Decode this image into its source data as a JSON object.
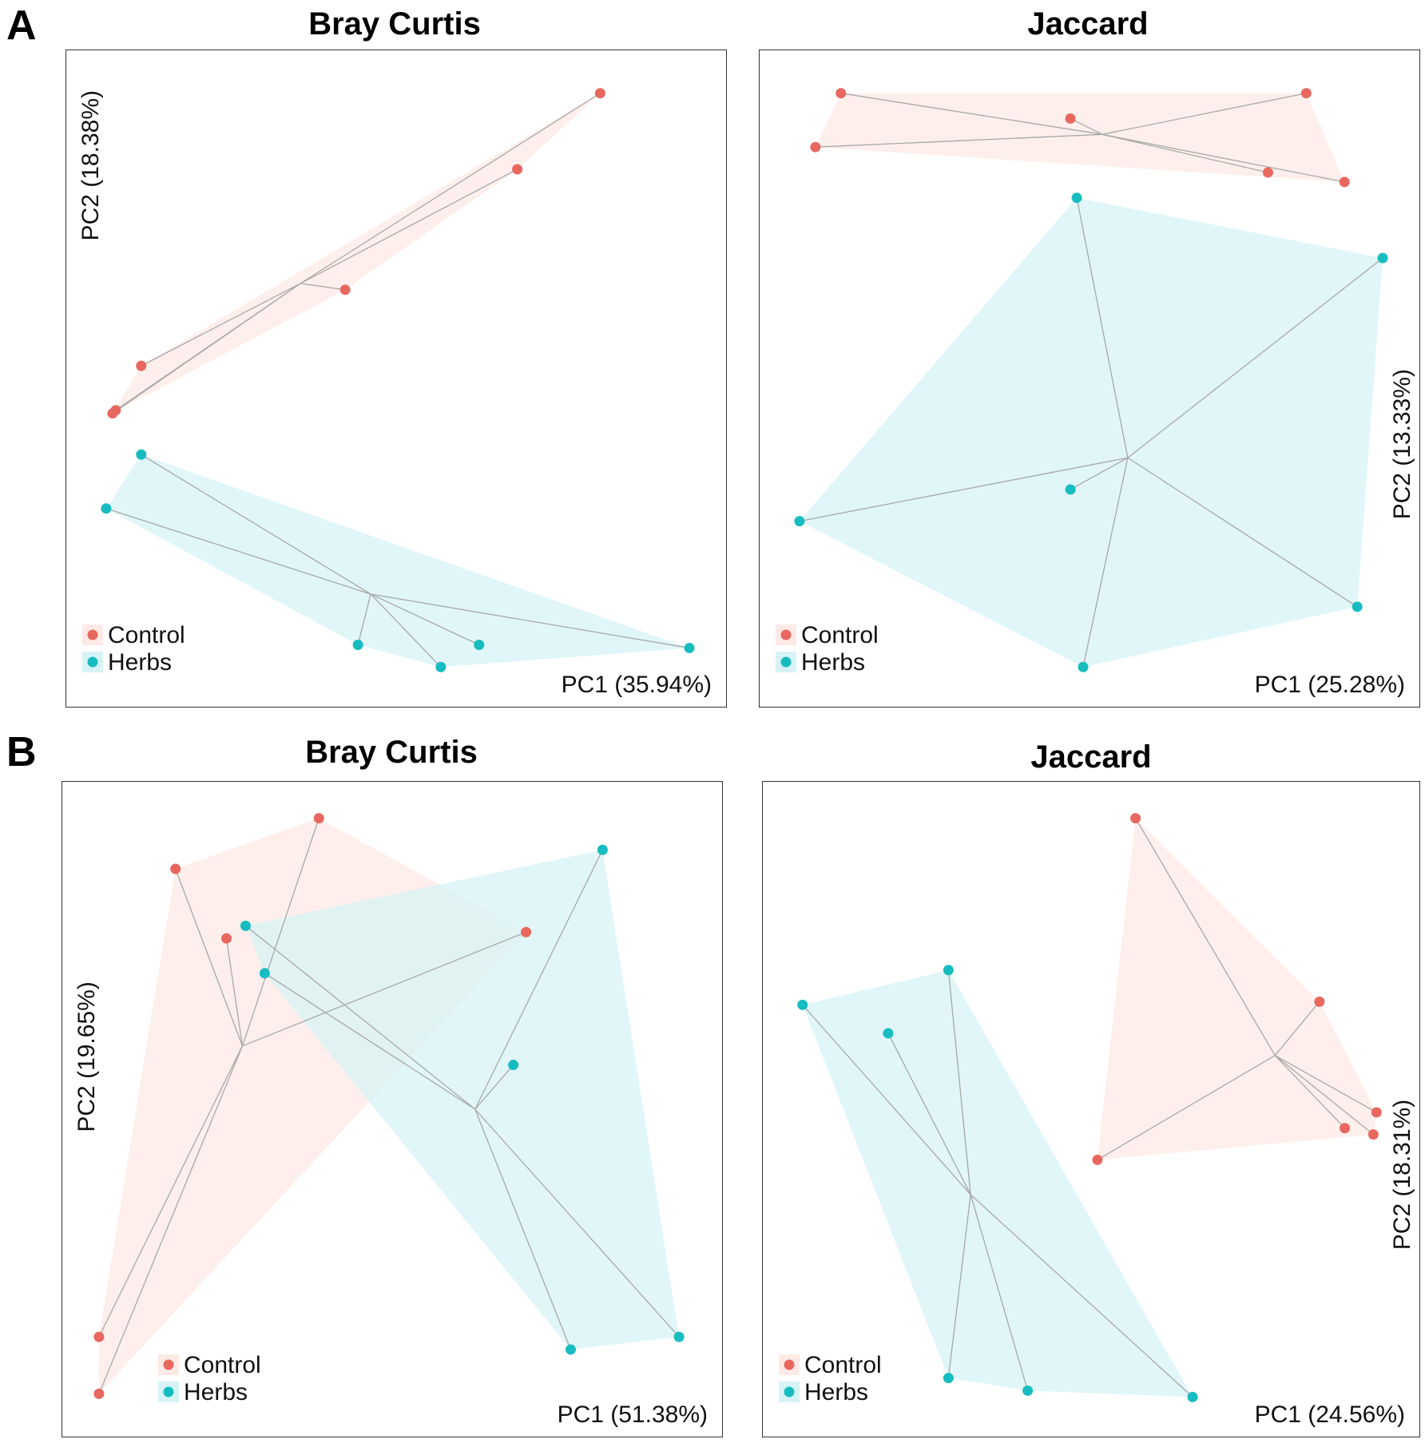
{
  "panels": [
    {
      "letter": "A"
    },
    {
      "letter": "B"
    }
  ],
  "colors": {
    "control_point": "#e8685f",
    "control_fill": "#fde9e6",
    "herbs_point": "#17bcc0",
    "herbs_fill": "#d7f3f5",
    "spider_line": "#a8a8a8"
  },
  "legend": {
    "control_label": "Control",
    "herbs_label": "Herbs"
  },
  "chart_data": [
    {
      "type": "scatter",
      "panel": "A",
      "title": "Bray Curtis",
      "xlabel": "PC1 (35.94%)",
      "ylabel": "PC2 (18.38%)",
      "xlim": [
        0,
        100
      ],
      "ylim": [
        0,
        100
      ],
      "grid": false,
      "ylabel_position": "top-left",
      "legend_position": "bottom-left",
      "series": [
        {
          "name": "Control",
          "centroid": [
            35,
            65
          ],
          "points": [
            [
              82,
              95
            ],
            [
              69,
              83
            ],
            [
              42,
              64
            ],
            [
              10,
              52
            ],
            [
              6,
              45
            ],
            [
              5.5,
              44.5
            ]
          ]
        },
        {
          "name": "Herbs",
          "centroid": [
            46,
            16
          ],
          "points": [
            [
              10,
              38
            ],
            [
              4.5,
              29.5
            ],
            [
              44,
              8
            ],
            [
              57,
              4.5
            ],
            [
              63,
              8
            ],
            [
              96,
              7.5
            ]
          ]
        }
      ]
    },
    {
      "type": "scatter",
      "panel": "A",
      "title": "Jaccard",
      "xlabel": "PC1 (25.28%)",
      "ylabel": "PC2 (13.33%)",
      "xlim": [
        0,
        100
      ],
      "ylim": [
        0,
        100
      ],
      "grid": false,
      "ylabel_position": "right",
      "legend_position": "bottom-left",
      "series": [
        {
          "name": "Control",
          "centroid": [
            52,
            88.5
          ],
          "points": [
            [
              11,
              95
            ],
            [
              7,
              86.5
            ],
            [
              47,
              91
            ],
            [
              84,
              95
            ],
            [
              78,
              82.5
            ],
            [
              90,
              81
            ]
          ]
        },
        {
          "name": "Herbs",
          "centroid": [
            56,
            37.5
          ],
          "points": [
            [
              48,
              78.5
            ],
            [
              96,
              69
            ],
            [
              47,
              32.5
            ],
            [
              4.5,
              27.5
            ],
            [
              92,
              14
            ],
            [
              49,
              4.5
            ]
          ]
        }
      ]
    },
    {
      "type": "scatter",
      "panel": "B",
      "title": "Bray Curtis",
      "xlabel": "PC1 (51.38%)",
      "ylabel": "PC2 (19.65%)",
      "xlim": [
        0,
        100
      ],
      "ylim": [
        0,
        100
      ],
      "grid": false,
      "ylabel_position": "left",
      "legend_position": "bottom-left",
      "series": [
        {
          "name": "Control",
          "centroid": [
            26.5,
            60
          ],
          "points": [
            [
              38.5,
              96
            ],
            [
              16,
              88
            ],
            [
              24,
              77
            ],
            [
              71,
              78
            ],
            [
              4,
              14
            ],
            [
              4,
              5
            ]
          ]
        },
        {
          "name": "Herbs",
          "centroid": [
            63,
            50
          ],
          "points": [
            [
              83,
              91
            ],
            [
              27,
              79
            ],
            [
              30,
              71.5
            ],
            [
              69,
              57
            ],
            [
              78,
              12
            ],
            [
              95,
              14
            ]
          ]
        }
      ]
    },
    {
      "type": "scatter",
      "panel": "B",
      "title": "Jaccard",
      "xlabel": "PC1 (24.56%)",
      "ylabel": "PC2 (18.31%)",
      "xlim": [
        0,
        100
      ],
      "ylim": [
        0,
        100
      ],
      "grid": false,
      "ylabel_position": "right",
      "legend_position": "bottom-left",
      "series": [
        {
          "name": "Control",
          "centroid": [
            79,
            58.5
          ],
          "points": [
            [
              57,
              96
            ],
            [
              86,
              67
            ],
            [
              95,
              49.5
            ],
            [
              90,
              47
            ],
            [
              94.5,
              46
            ],
            [
              51,
              42
            ]
          ]
        },
        {
          "name": "Herbs",
          "centroid": [
            31,
            36.5
          ],
          "points": [
            [
              27.5,
              72
            ],
            [
              4.5,
              66.5
            ],
            [
              18,
              62
            ],
            [
              27.5,
              7.5
            ],
            [
              40,
              5.5
            ],
            [
              66,
              4.5
            ]
          ]
        }
      ]
    }
  ]
}
